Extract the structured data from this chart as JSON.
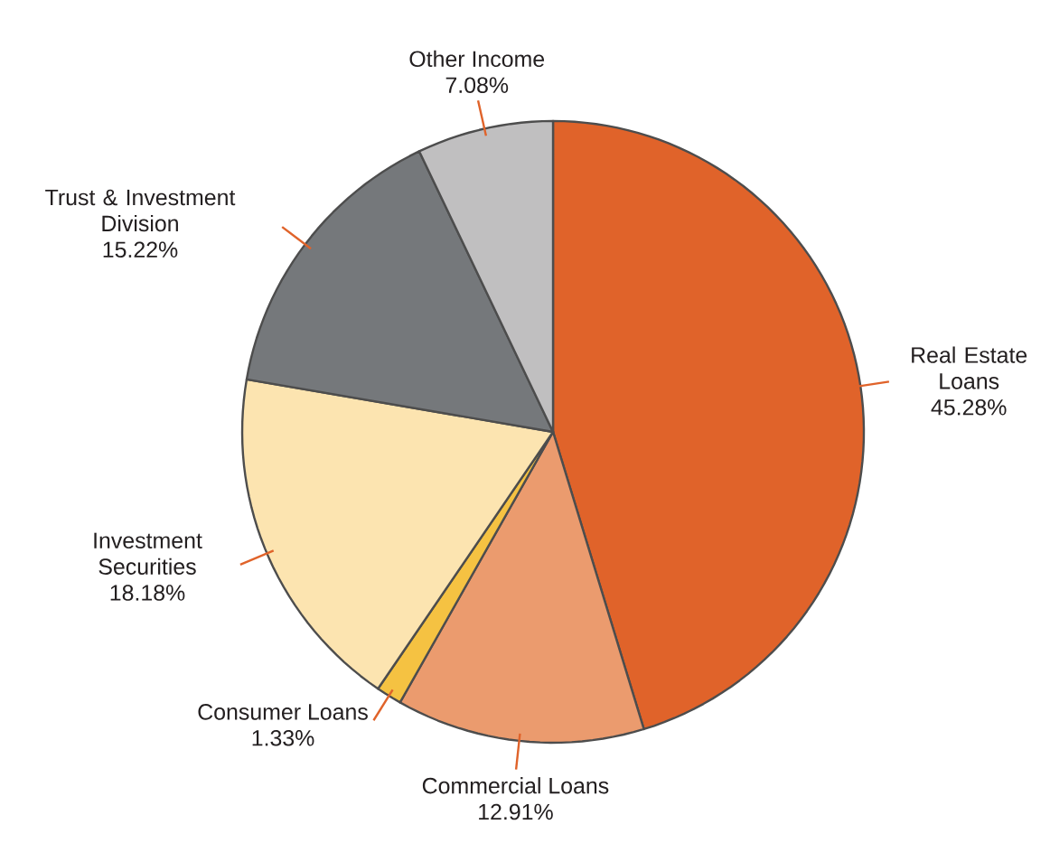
{
  "chart_data": {
    "type": "pie",
    "categories": [
      "Real Estate Loans",
      "Commercial Loans",
      "Consumer Loans",
      "Investment Securities",
      "Trust & Investment Division",
      "Other Income"
    ],
    "values": [
      45.28,
      12.91,
      1.33,
      18.18,
      15.22,
      7.08
    ],
    "value_labels": [
      "45.28%",
      "12.91%",
      "1.33%",
      "18.18%",
      "15.22%",
      "7.08%"
    ],
    "colors": [
      "#e0632a",
      "#eb9b6e",
      "#f5c242",
      "#fce4b0",
      "#75787b",
      "#c0bfc0"
    ]
  }
}
